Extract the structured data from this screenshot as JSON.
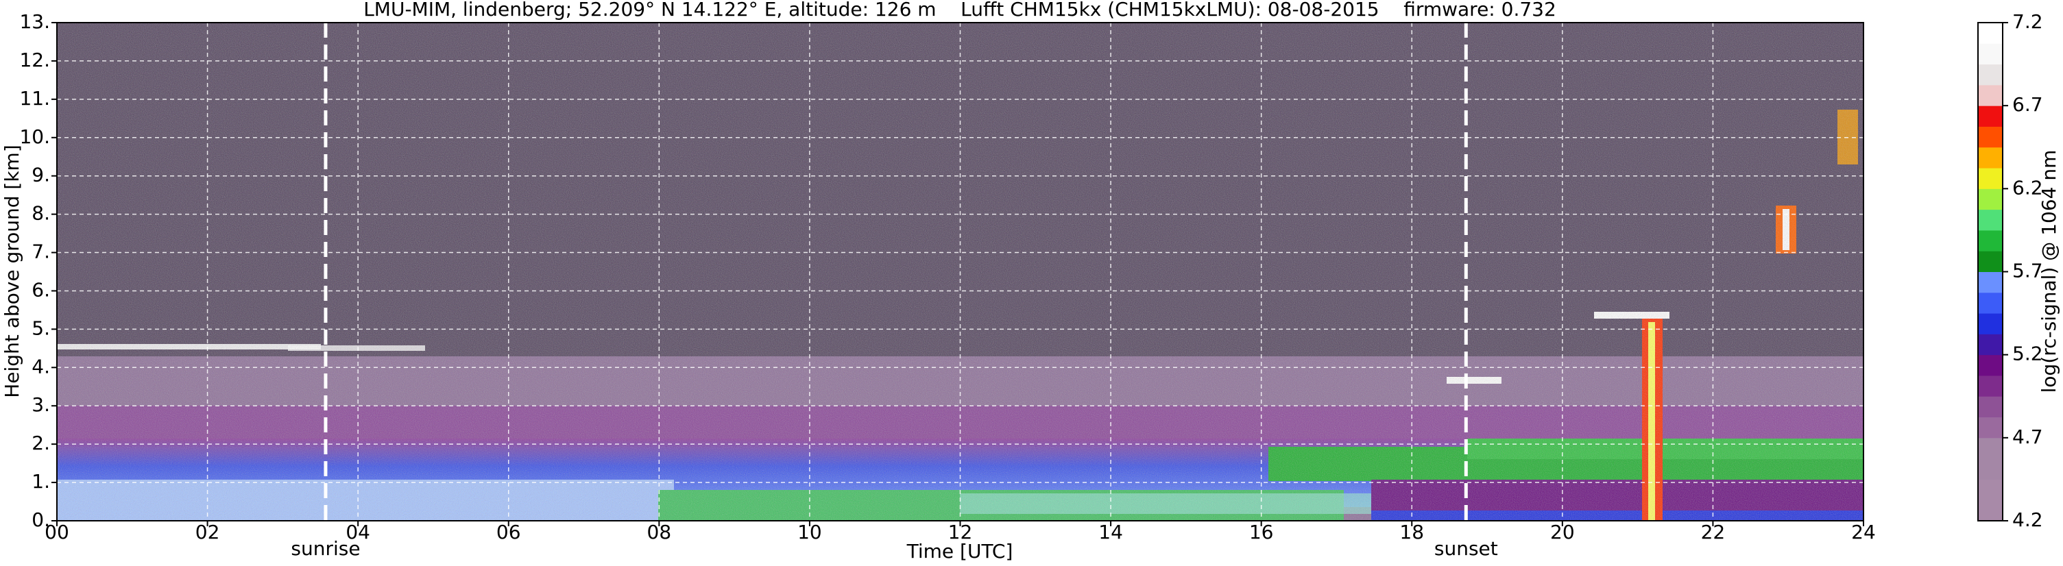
{
  "chart_data": {
    "type": "heatmap",
    "title": "LMU-MIM, lindenberg; 52.209° N 14.122° E, altitude: 126 m    Lufft CHM15kx (CHM15kxLMU): 08-08-2015    firmware: 0.732",
    "xlabel": "Time [UTC]",
    "ylabel": "Height above ground [km]",
    "xlim": [
      0,
      24
    ],
    "xticks": [
      {
        "value": 0,
        "label": "00"
      },
      {
        "value": 2,
        "label": "02"
      },
      {
        "value": 4,
        "label": "04"
      },
      {
        "value": 6,
        "label": "06"
      },
      {
        "value": 8,
        "label": "08"
      },
      10,
      12,
      14,
      16,
      18,
      20,
      22,
      24
    ],
    "ylim": [
      0,
      13
    ],
    "yticks": [
      {
        "value": 0,
        "label": "0."
      },
      {
        "value": 1,
        "label": "1."
      },
      {
        "value": 2,
        "label": "2."
      },
      {
        "value": 3,
        "label": "3."
      },
      {
        "value": 4,
        "label": "4."
      },
      {
        "value": 5,
        "label": "5."
      },
      {
        "value": 6,
        "label": "6."
      },
      {
        "value": 7,
        "label": "7."
      },
      {
        "value": 8,
        "label": "8."
      },
      {
        "value": 9,
        "label": "9."
      },
      {
        "value": 10,
        "label": "10."
      },
      {
        "value": 11,
        "label": "11."
      },
      {
        "value": 12,
        "label": "12."
      },
      {
        "value": 13,
        "label": "13."
      }
    ],
    "grid": true,
    "annotations": [
      {
        "x": 3.57,
        "label": "sunrise"
      },
      {
        "x": 18.72,
        "label": "sunset"
      }
    ],
    "colorbar": {
      "label": "log(rc-signal) @ 1064 nm",
      "lim": [
        4.2,
        7.2
      ],
      "ticks": [
        4.2,
        4.7,
        5.2,
        5.7,
        6.2,
        6.7,
        7.2
      ],
      "colors": [
        "#a88aa8",
        "#a88aa8",
        "#a487a6",
        "#a487a6",
        "#9a6a9e",
        "#8e5296",
        "#7e2c8c",
        "#6e0c84",
        "#4018a8",
        "#2030e0",
        "#3c5cf8",
        "#6a90ff",
        "#10901a",
        "#20b838",
        "#50e078",
        "#a0f040",
        "#f0f020",
        "#ffb000",
        "#ff5000",
        "#f01010",
        "#f0c8c8",
        "#e8e4e4",
        "#f8f8f8",
        "#ffffff"
      ]
    }
  }
}
